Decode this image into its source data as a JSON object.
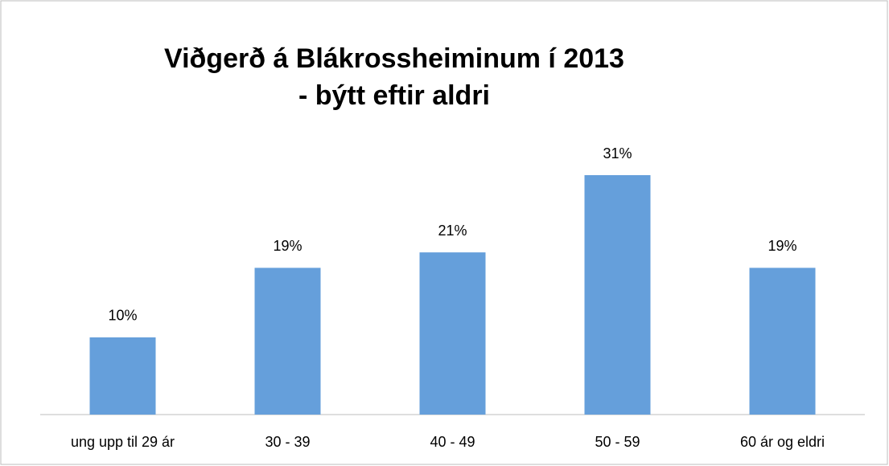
{
  "chart_data": {
    "type": "bar",
    "title": [
      "Viðgerð á Blákrossheiminum í 2013",
      "- býtt eftir aldri"
    ],
    "categories": [
      "ung upp til 29 ár",
      "30 - 39",
      "40 - 49",
      "50 - 59",
      "60 ár og eldri"
    ],
    "values": [
      10,
      19,
      21,
      31,
      19
    ],
    "value_labels": [
      "10%",
      "19%",
      "21%",
      "31%",
      "19%"
    ],
    "color": "#659fdb"
  }
}
